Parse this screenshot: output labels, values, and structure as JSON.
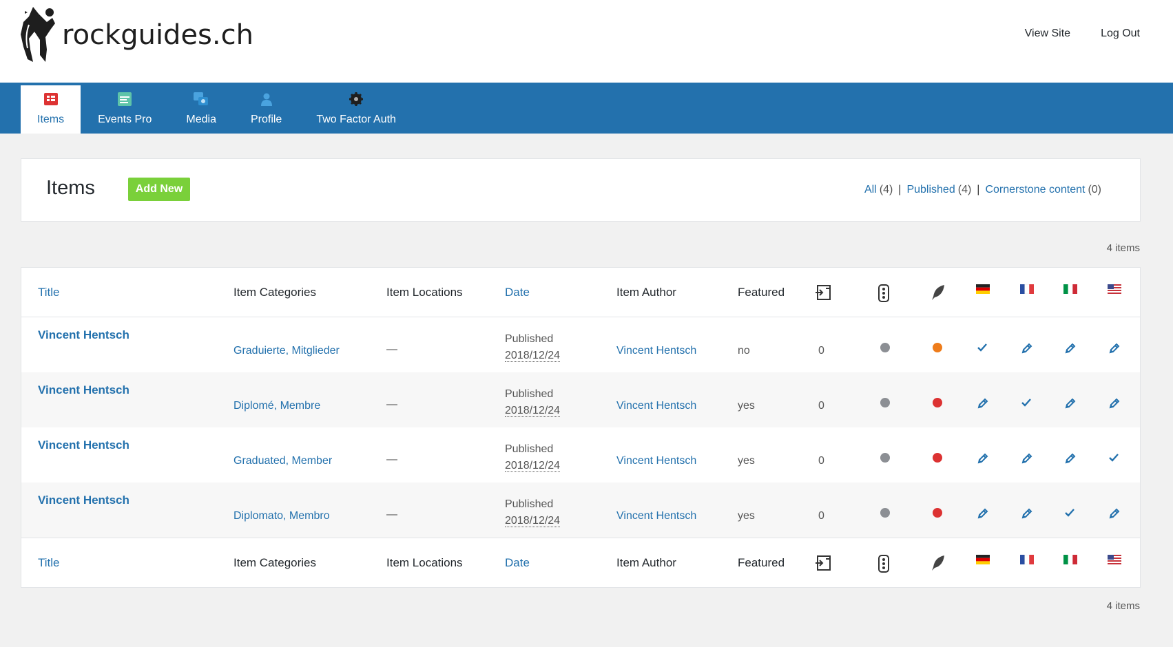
{
  "header": {
    "logo_text": "rockguides.ch",
    "links": [
      "View Site",
      "Log Out"
    ]
  },
  "nav": {
    "items": [
      {
        "label": "Items",
        "icon": "items-grid-icon",
        "active": true
      },
      {
        "label": "Events Pro",
        "icon": "events-calendar-icon",
        "active": false
      },
      {
        "label": "Media",
        "icon": "media-icon",
        "active": false
      },
      {
        "label": "Profile",
        "icon": "profile-person-icon",
        "active": false
      },
      {
        "label": "Two Factor Auth",
        "icon": "gear-icon",
        "active": false
      }
    ]
  },
  "page": {
    "title": "Items",
    "add_new": "Add New",
    "filters": [
      {
        "label": "All",
        "count": "(4)"
      },
      {
        "label": "Published",
        "count": "(4)"
      },
      {
        "label": "Cornerstone content",
        "count": "(0)"
      }
    ],
    "items_count_top": "4 items",
    "items_count_bottom": "4 items"
  },
  "table": {
    "columns": {
      "title": "Title",
      "categories": "Item Categories",
      "locations": "Item Locations",
      "date": "Date",
      "author": "Item Author",
      "featured": "Featured"
    },
    "icon_columns": [
      "links-icon",
      "seo-traffic-light-icon",
      "readability-feather-icon",
      "flag-de-icon",
      "flag-fr-icon",
      "flag-it-icon",
      "flag-us-icon"
    ],
    "status_colors": {
      "grey": "#8c8f94",
      "orange": "#ee7c1b",
      "red": "#dc3232"
    },
    "rows": [
      {
        "title": "Vincent Hentsch",
        "categories": "Graduierte, Mitglieder",
        "locations": "—",
        "status": "Published",
        "date": "2018/12/24",
        "author": "Vincent Hentsch",
        "featured": "no",
        "links": "0",
        "seo": "grey",
        "readability": "orange",
        "langs": [
          "check",
          "edit",
          "edit",
          "edit"
        ]
      },
      {
        "title": "Vincent Hentsch",
        "categories": "Diplomé, Membre",
        "locations": "—",
        "status": "Published",
        "date": "2018/12/24",
        "author": "Vincent Hentsch",
        "featured": "yes",
        "links": "0",
        "seo": "grey",
        "readability": "red",
        "langs": [
          "edit",
          "check",
          "edit",
          "edit"
        ]
      },
      {
        "title": "Vincent Hentsch",
        "categories": "Graduated, Member",
        "locations": "—",
        "status": "Published",
        "date": "2018/12/24",
        "author": "Vincent Hentsch",
        "featured": "yes",
        "links": "0",
        "seo": "grey",
        "readability": "red",
        "langs": [
          "edit",
          "edit",
          "edit",
          "check"
        ]
      },
      {
        "title": "Vincent Hentsch",
        "categories": "Diplomato, Membro",
        "locations": "—",
        "status": "Published",
        "date": "2018/12/24",
        "author": "Vincent Hentsch",
        "featured": "yes",
        "links": "0",
        "seo": "grey",
        "readability": "red",
        "langs": [
          "edit",
          "edit",
          "check",
          "edit"
        ]
      }
    ]
  }
}
